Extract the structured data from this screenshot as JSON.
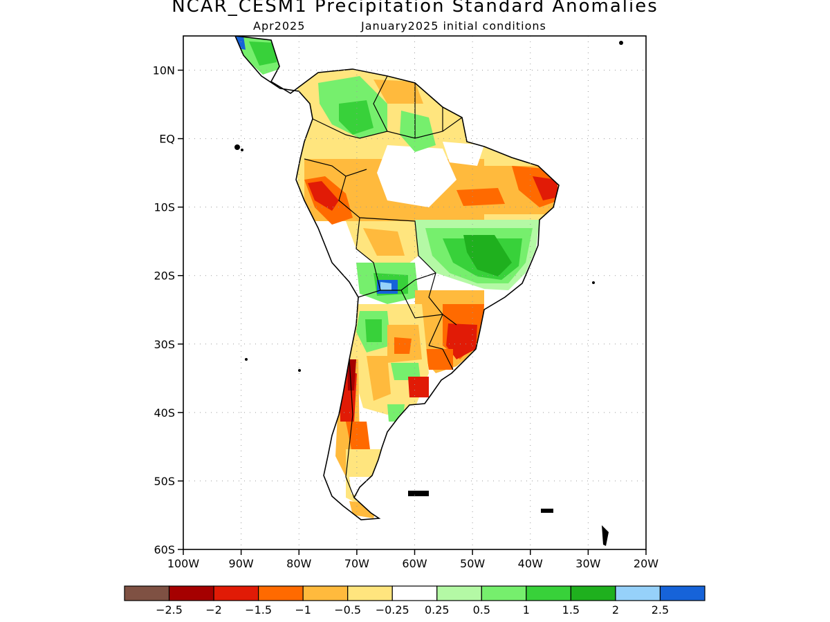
{
  "title": "NCAR_CESM1 Precipitation Standard Anomalies",
  "subtitle_left": "Apr2025",
  "subtitle_right": "January2025 initial conditions",
  "map": {
    "lon_range": [
      -100,
      -20
    ],
    "lat_range": [
      -60,
      15
    ],
    "lat_labels": [
      "10N",
      "EQ",
      "10S",
      "20S",
      "30S",
      "40S",
      "50S",
      "60S"
    ],
    "lat_values": [
      10,
      0,
      -10,
      -20,
      -30,
      -40,
      -50,
      -60
    ],
    "lon_labels": [
      "100W",
      "90W",
      "80W",
      "70W",
      "60W",
      "50W",
      "40W",
      "30W",
      "20W"
    ],
    "lon_values": [
      -100,
      -90,
      -80,
      -70,
      -60,
      -50,
      -40,
      -30,
      -20
    ],
    "grid": "dotted"
  },
  "colorbar": {
    "colors": [
      "#7f5143",
      "#a50000",
      "#e11b06",
      "#ff6a00",
      "#ffba3d",
      "#ffe57e",
      "#ffffff",
      "#b4f9a5",
      "#76ef6d",
      "#38d13a",
      "#1fb01e",
      "#96d1fa",
      "#1663d9"
    ],
    "labels": [
      "−2.5",
      "−2",
      "−1.5",
      "−1",
      "−0.5",
      "−0.25",
      "0.25",
      "0.5",
      "1",
      "1.5",
      "2",
      "2.5"
    ]
  }
}
